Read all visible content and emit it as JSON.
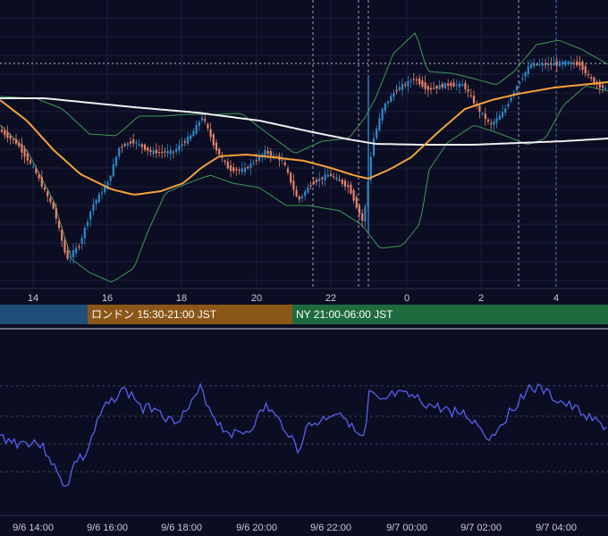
{
  "chart_data": [
    {
      "type": "candlestick",
      "title": "",
      "x_tick_labels": [
        "14",
        "16",
        "18",
        "20",
        "22",
        "0",
        "2",
        "4"
      ],
      "series": [
        {
          "style": "candlestick",
          "colors": {
            "up": "#2f88c8",
            "down": "#e8836a"
          }
        },
        {
          "style": "moving-average",
          "color": "#f5a23a"
        },
        {
          "style": "moving-average",
          "color": "#f0f0f0"
        },
        {
          "style": "bollinger-bands",
          "color": "#3d9a55"
        }
      ],
      "reference_line": {
        "style": "dotted",
        "color": "#bfc4d6"
      },
      "grid": true
    },
    {
      "type": "line",
      "title": "",
      "x_tick_labels": [
        "9/6 14:00",
        "9/6 16:00",
        "9/6 18:00",
        "9/6 20:00",
        "9/6 22:00",
        "9/7 00:00",
        "9/7 02:00",
        "9/7 04:00"
      ],
      "series": [
        {
          "style": "line",
          "color": "#5561ee"
        }
      ],
      "grid": true
    }
  ],
  "sessions": {
    "tokyo": "",
    "london": "ロンドン 15:30-21:00 JST",
    "ny": "NY 21:00-06:00 JST"
  },
  "colors": {
    "background": "#0b0d23",
    "tokyo": "#1f4e78",
    "london": "#8a5718",
    "ny": "#1f6b3f"
  }
}
